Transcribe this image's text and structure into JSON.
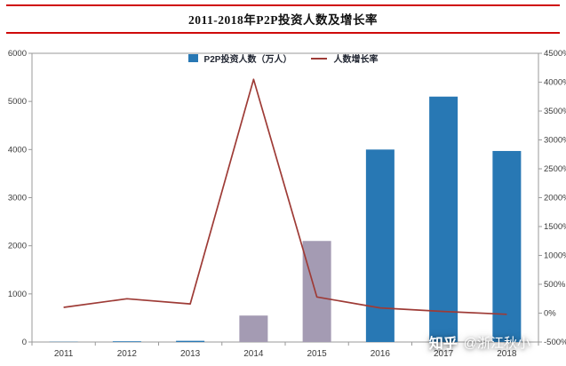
{
  "title": "2011-2018年P2P投资人数及增长率",
  "legend": {
    "bars": "P2P投资人数（万人）",
    "line": "人数增长率"
  },
  "watermark": {
    "logo": "知乎",
    "handle": "@浙江秋小"
  },
  "colors": {
    "title_rule": "#cf0a0a",
    "bar_blue": "#2878b4",
    "bar_purple": "#a49bb3",
    "line": "#9e3b36",
    "frame": "#9a9a9a",
    "tick_text": "#3a3a3a"
  },
  "chart_data": {
    "type": "bar+line",
    "title": "2011-2018年P2P投资人数及增长率",
    "categories": [
      "2011",
      "2012",
      "2013",
      "2014",
      "2015",
      "2016",
      "2017",
      "2018"
    ],
    "series": [
      {
        "name": "P2P投资人数（万人）",
        "type": "bar",
        "axis": "left",
        "values": [
          5,
          15,
          25,
          550,
          2100,
          4000,
          5100,
          3970
        ],
        "colors": [
          "#2878b4",
          "#2878b4",
          "#2878b4",
          "#a49bb3",
          "#a49bb3",
          "#2878b4",
          "#2878b4",
          "#2878b4"
        ]
      },
      {
        "name": "人数增长率",
        "type": "line",
        "axis": "right",
        "values": [
          100,
          250,
          160,
          4050,
          280,
          90,
          30,
          -20
        ],
        "color": "#9e3b36"
      }
    ],
    "left_axis": {
      "min": 0,
      "max": 6000,
      "step": 1000,
      "ticks": [
        "0",
        "1000",
        "2000",
        "3000",
        "4000",
        "5000",
        "6000"
      ]
    },
    "right_axis": {
      "min": -500,
      "max": 4500,
      "step": 500,
      "ticks": [
        "-500%",
        "0%",
        "500%",
        "1000%",
        "1500%",
        "2000%",
        "2500%",
        "3000%",
        "3500%",
        "4000%",
        "4500%"
      ]
    },
    "grid": false,
    "legend_position": "top-center"
  }
}
